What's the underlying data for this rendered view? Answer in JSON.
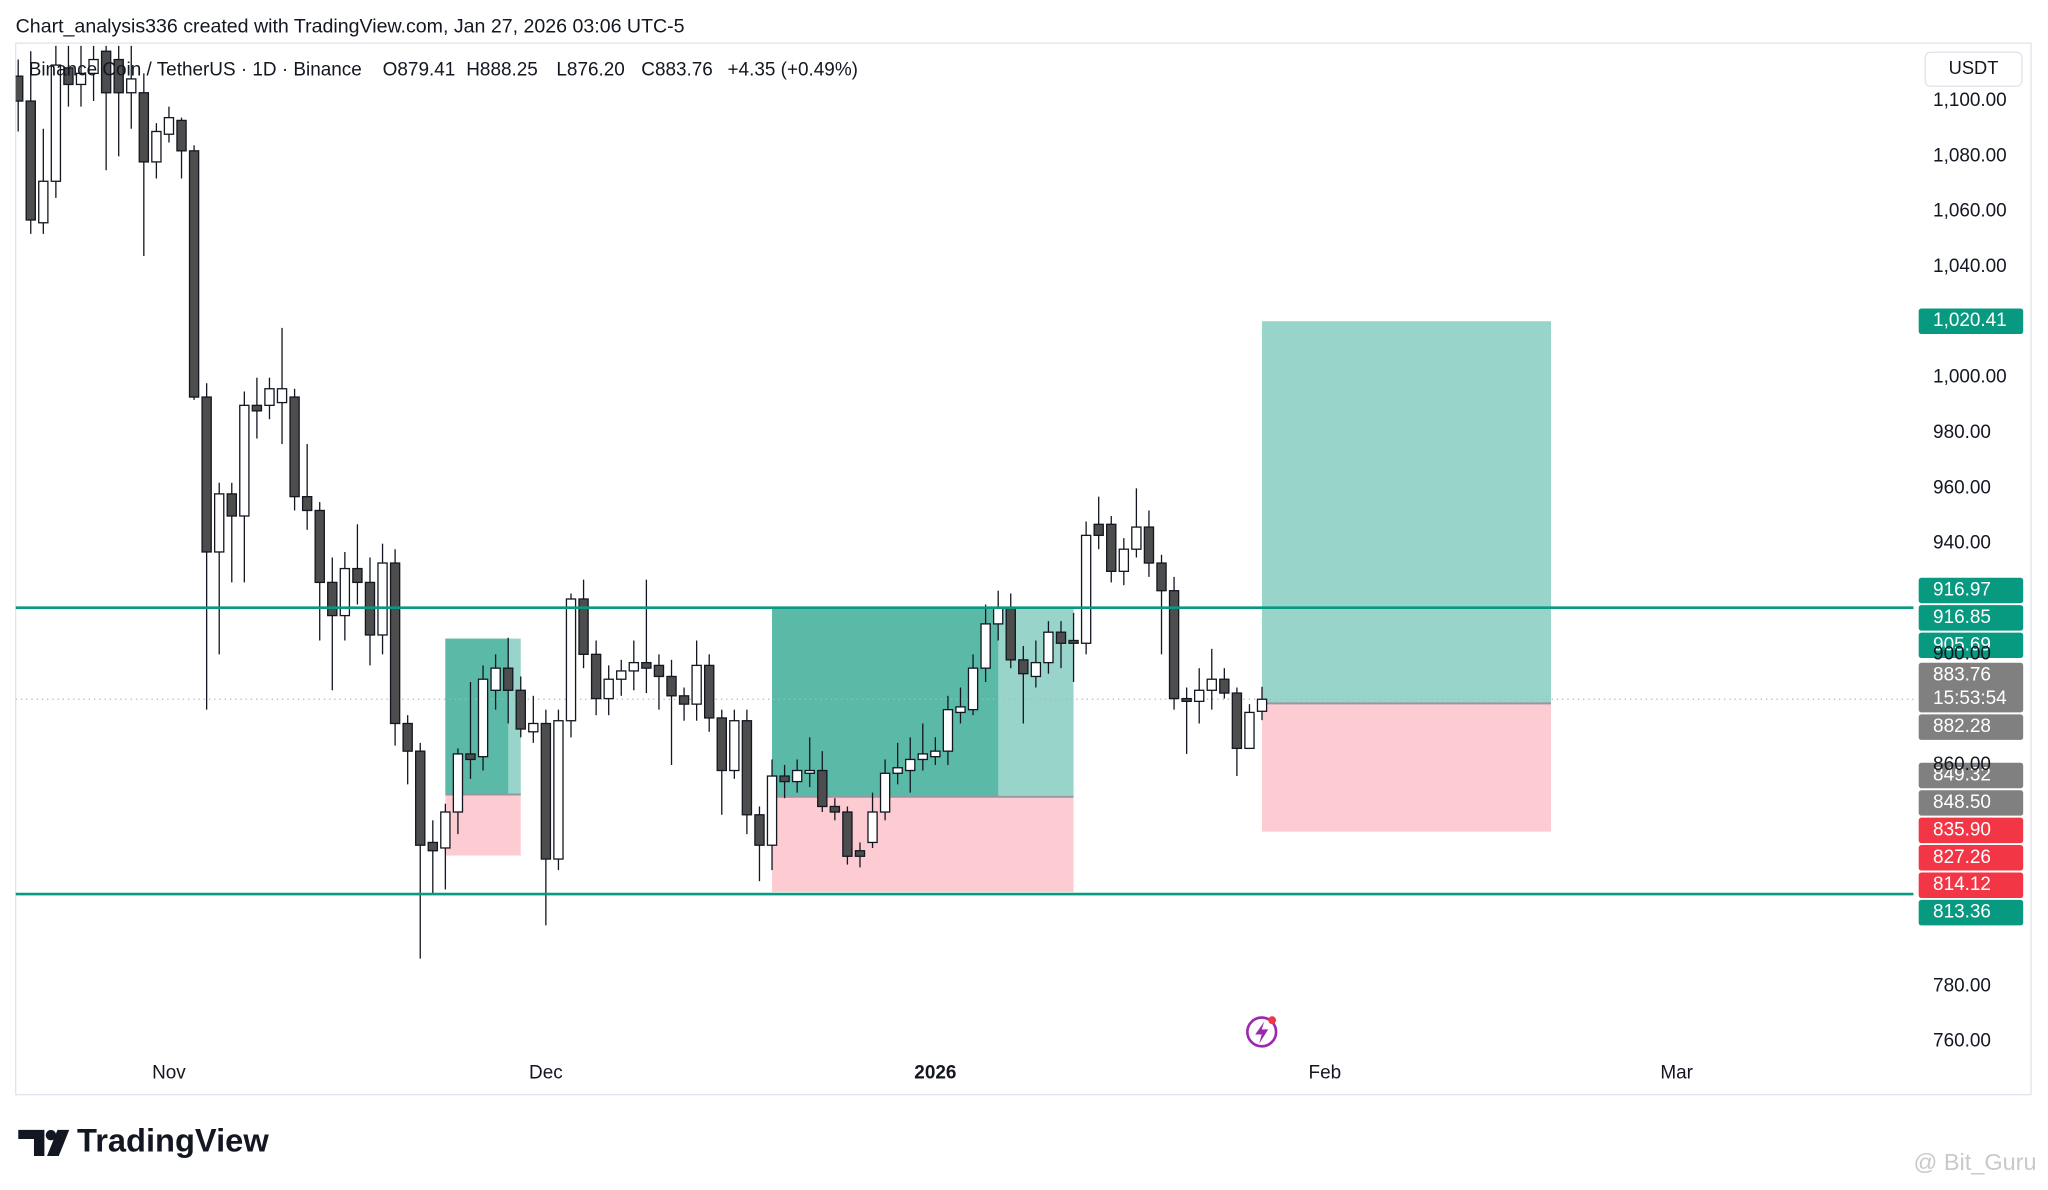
{
  "header": "Chart_analysis336 created with TradingView.com, Jan 27, 2026 03:06 UTC-5",
  "footer": {
    "brand": "TradingView",
    "watermark": "@ Bit_Guru"
  },
  "chart_data": {
    "type": "candlestick",
    "title": "Binance Coin / TetherUS · 1D · Binance",
    "ohlc_legend": [
      "O879.41",
      "H888.25",
      "L876.20",
      "C883.76"
    ],
    "change": "+4.35 (+0.49%)",
    "currency": "USDT",
    "open": [
      1109,
      1100,
      1056,
      1071,
      1112,
      1106,
      1110,
      1118,
      1115,
      1103,
      1103,
      1078,
      1088,
      1093,
      1082,
      993,
      937,
      958,
      950,
      990,
      990,
      991,
      993,
      957,
      952,
      926,
      914,
      931,
      926,
      907,
      933,
      875,
      865,
      832,
      830,
      843,
      864,
      863,
      887,
      895,
      887,
      872,
      875,
      826,
      876,
      920,
      900,
      884,
      891,
      894,
      897,
      896,
      892,
      885,
      882,
      896,
      877,
      858,
      876,
      842,
      831,
      856,
      854,
      857,
      858,
      845,
      843,
      829,
      832,
      843,
      857,
      858,
      862,
      863,
      865,
      879,
      880,
      895,
      911,
      917,
      898,
      892,
      897,
      908,
      905,
      904,
      947,
      947,
      930,
      938,
      946,
      933,
      923,
      884,
      883,
      887,
      891,
      886,
      866,
      879.41
    ],
    "high": [
      1115,
      1118,
      1090,
      1120,
      1120,
      1120,
      1120,
      1120,
      1120,
      1120,
      1110,
      1092,
      1098,
      1094,
      1084,
      998,
      962,
      962,
      995,
      1000,
      1000,
      1018,
      996,
      976,
      955,
      935,
      937,
      947,
      935,
      940,
      938,
      878,
      868,
      840,
      846,
      866,
      890,
      896,
      900,
      906,
      892,
      885,
      880,
      880,
      922,
      927,
      905,
      896,
      898,
      905,
      927,
      900,
      898,
      888,
      905,
      900,
      880,
      880,
      880,
      845,
      862,
      860,
      862,
      870,
      865,
      848,
      845,
      832,
      850,
      862,
      868,
      870,
      875,
      870,
      885,
      888,
      900,
      918,
      923,
      922,
      903,
      905,
      912,
      912,
      915,
      948,
      957,
      950,
      942,
      960,
      952,
      936,
      928,
      888,
      895,
      902,
      895,
      888,
      882,
      888.25
    ],
    "low": [
      1089,
      1052,
      1052,
      1065,
      1098,
      1098,
      1100,
      1075,
      1080,
      1090,
      1044,
      1072,
      1085,
      1072,
      992,
      880,
      900,
      926,
      926,
      978,
      985,
      976,
      952,
      945,
      905,
      887,
      905,
      918,
      896,
      900,
      867,
      853,
      790,
      813,
      815,
      835,
      855,
      858,
      880,
      875,
      870,
      868,
      802,
      822,
      870,
      895,
      878,
      878,
      885,
      887,
      886,
      880,
      860,
      876,
      876,
      872,
      842,
      855,
      835,
      818,
      822,
      848,
      850,
      852,
      843,
      840,
      824,
      823,
      830,
      840,
      853,
      850,
      858,
      860,
      860,
      875,
      878,
      890,
      905,
      895,
      875,
      888,
      893,
      895,
      890,
      900,
      938,
      926,
      925,
      935,
      928,
      900,
      880,
      864,
      875,
      880,
      884,
      856,
      866,
      876.2
    ],
    "close": [
      1100,
      1057,
      1071,
      1113,
      1106,
      1110,
      1115,
      1103,
      1103,
      1108,
      1078,
      1089,
      1094,
      1082,
      993,
      937,
      958,
      950,
      990,
      988,
      996,
      996,
      957,
      952,
      926,
      914,
      931,
      926,
      907,
      933,
      875,
      865,
      831,
      829,
      843,
      864,
      862,
      891,
      895,
      887,
      873,
      875,
      826,
      876,
      920,
      900,
      884,
      891,
      894,
      897,
      895,
      892,
      885,
      882,
      896,
      877,
      858,
      876,
      842,
      831,
      856,
      854,
      858,
      858,
      845,
      843,
      827,
      827,
      843,
      857,
      859,
      862,
      864,
      865,
      880,
      881,
      895,
      911,
      917,
      898,
      893,
      897,
      908,
      904,
      904,
      943,
      943,
      930,
      938,
      946,
      933,
      923,
      884,
      883,
      887,
      891,
      886,
      866,
      879,
      883.76
    ],
    "up_color": "#ffffff",
    "down_color": "#4d4d4d",
    "wick_color": "#131722",
    "xlim": [
      -0.2,
      150.85
    ],
    "xticks": [
      {
        "value": 12,
        "label": "Nov"
      },
      {
        "value": 42,
        "label": "Dec"
      },
      {
        "value": 73,
        "label": "2026"
      },
      {
        "value": 104,
        "label": "Feb"
      },
      {
        "value": 132,
        "label": "Mar"
      }
    ],
    "ylim": [
      755,
      1120
    ],
    "yticks": [
      {
        "value": 760,
        "label": "760.00"
      },
      {
        "value": 780,
        "label": "780.00"
      },
      {
        "value": 860,
        "label": "860.00"
      },
      {
        "value": 900,
        "label": "900.00"
      },
      {
        "value": 940,
        "label": "940.00"
      },
      {
        "value": 960,
        "label": "960.00"
      },
      {
        "value": 980,
        "label": "980.00"
      },
      {
        "value": 1000,
        "label": "1,000.00"
      },
      {
        "value": 1040,
        "label": "1,040.00"
      },
      {
        "value": 1060,
        "label": "1,060.00"
      },
      {
        "value": 1080,
        "label": "1,080.00"
      },
      {
        "value": 1100,
        "label": "1,100.00"
      }
    ],
    "grid": false,
    "hlines": [
      916.85,
      813.36
    ],
    "hline_color": "#089981",
    "positions": [
      {
        "start": 34,
        "end": 40,
        "filled_end": 39,
        "target": 905.69,
        "entry": 849.32,
        "stop": 827.26
      },
      {
        "start": 60,
        "end": 84,
        "filled_end": 78,
        "target": 916.97,
        "entry": 848.5,
        "stop": 814.12
      },
      {
        "start": 99,
        "end": 122,
        "target": 1020.41,
        "entry": 882.28,
        "stop": 835.9
      }
    ],
    "target_color": "#98d4c9",
    "filled_color": "#5bbaa7",
    "stop_color": "#fdccd2",
    "price_labels": [
      {
        "value": 1020.41,
        "label": "1,020.41",
        "color": "#089981"
      },
      {
        "value": 916.97,
        "color": "#089981"
      },
      {
        "value": 916.85,
        "color": "#089981"
      },
      {
        "value": 905.69,
        "color": "#089981"
      },
      {
        "value": 883.76,
        "countdown": "15:53:54",
        "color": "#808080"
      },
      {
        "value": 882.28,
        "color": "#808080"
      },
      {
        "value": 849.32,
        "color": "#808080"
      },
      {
        "value": 848.5,
        "label": "848.50",
        "color": "#808080"
      },
      {
        "value": 835.9,
        "label": "835.90",
        "color": "#f23645"
      },
      {
        "value": 827.26,
        "color": "#f23645"
      },
      {
        "value": 814.12,
        "color": "#f23645"
      },
      {
        "value": 813.36,
        "color": "#089981"
      }
    ]
  }
}
